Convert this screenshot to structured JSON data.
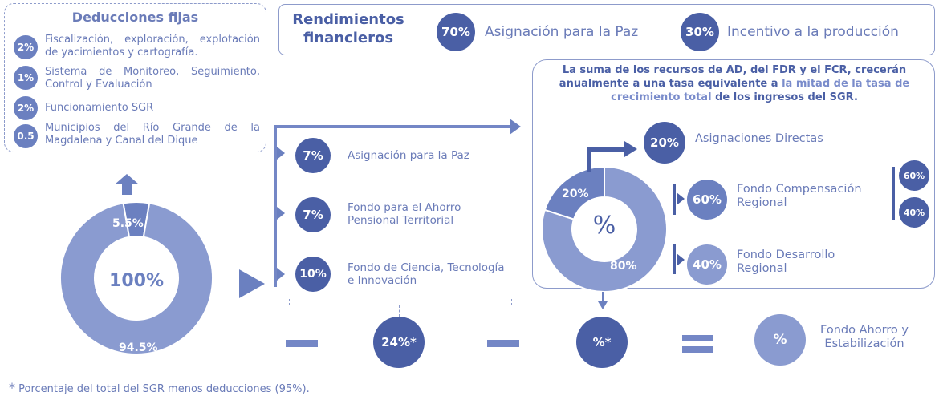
{
  "deducciones": {
    "title": "Deducciones fijas",
    "items": [
      {
        "badge": "2%",
        "text": "Fiscalización, exploración, explotación de yacimientos y cartografía."
      },
      {
        "badge": "1%",
        "text": "Sistema de Monitoreo, Seguimiento, Control y Evaluación"
      },
      {
        "badge": "2%",
        "text": "Funcionamiento SGR"
      },
      {
        "badge": "0.5",
        "text": "Municipios del Río Grande de la Magdalena y Canal del Dique"
      }
    ]
  },
  "rendimientos": {
    "title": "Rendimientos financieros",
    "items": [
      {
        "badge": "70%",
        "text": "Asignación para la Paz"
      },
      {
        "badge": "30%",
        "text": "Incentivo a la producción"
      }
    ]
  },
  "main_donut": {
    "center": "100%",
    "top_label": "5.5%",
    "bottom_label": "94.5%",
    "slices": [
      {
        "value": 5.5
      },
      {
        "value": 94.5
      }
    ]
  },
  "middle_items": [
    {
      "badge": "7%",
      "text": "Asignación para la Paz"
    },
    {
      "badge": "7%",
      "text": "Fondo para el Ahorro Pensional Territorial"
    },
    {
      "badge": "10%",
      "text": "Fondo de Ciencia, Tecnología e Innovación"
    }
  ],
  "right_panel": {
    "note_part1": "La suma de los recursos de AD, del FDR y el FCR, crecerán anualmente a una tasa equivalente a ",
    "note_highlight": "la mitad de la tasa de crecimiento total",
    "note_part2": " de los ingresos del SGR.",
    "donut": {
      "center": "%",
      "label_small": "20%",
      "label_large": "80%",
      "slices": [
        {
          "value": 20
        },
        {
          "value": 80
        }
      ]
    },
    "asignaciones": {
      "badge": "20%",
      "text": "Asignaciones Directas"
    },
    "compensacion": {
      "badge": "60%",
      "text": "Fondo Compensación Regional",
      "sub": [
        "60%",
        "40%"
      ]
    },
    "desarrollo": {
      "badge": "40%",
      "text": "Fondo Desarrollo Regional"
    }
  },
  "equation": {
    "term1": "24%*",
    "term2": "%*",
    "result": "%",
    "result_text": "Fondo Ahorro y Estabilización"
  },
  "footnote": "Porcentaje del total del SGR menos deducciones (95%).",
  "footnote_mark": "*",
  "colors": {
    "dark": "#4a5fa5",
    "mid": "#6b80c0",
    "light": "#8a9bd0",
    "text": "#6a7bb8"
  }
}
